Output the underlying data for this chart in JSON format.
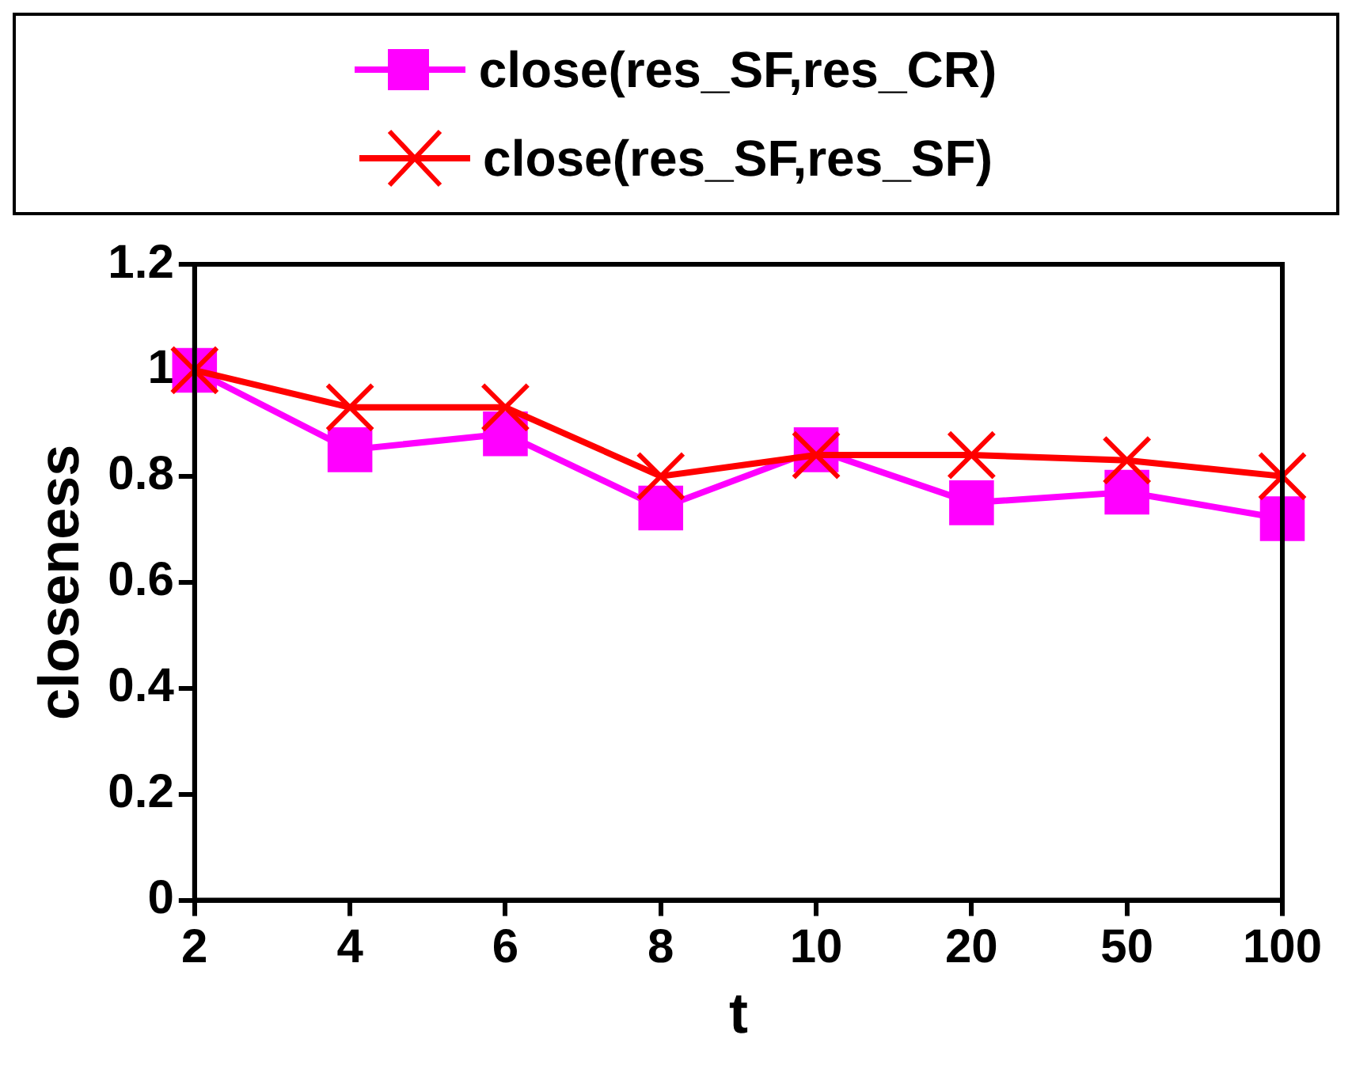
{
  "chart_data": {
    "type": "line",
    "xlabel": "t",
    "ylabel": "closeness",
    "categories": [
      "2",
      "4",
      "6",
      "8",
      "10",
      "20",
      "50",
      "100"
    ],
    "series": [
      {
        "name": "close(res_SF,res_CR)",
        "color": "#ff00ff",
        "marker": "square",
        "values": [
          1.0,
          0.85,
          0.88,
          0.74,
          0.85,
          0.75,
          0.77,
          0.72
        ]
      },
      {
        "name": "close(res_SF,res_SF)",
        "color": "#ff0000",
        "marker": "cross",
        "values": [
          1.0,
          0.93,
          0.93,
          0.8,
          0.84,
          0.84,
          0.83,
          0.8
        ]
      }
    ],
    "ylim": [
      0,
      1.2
    ],
    "yticks": [
      0,
      0.2,
      0.4,
      0.6,
      0.8,
      1,
      1.2
    ],
    "grid": false,
    "legend": "top",
    "line_style": "solid"
  }
}
